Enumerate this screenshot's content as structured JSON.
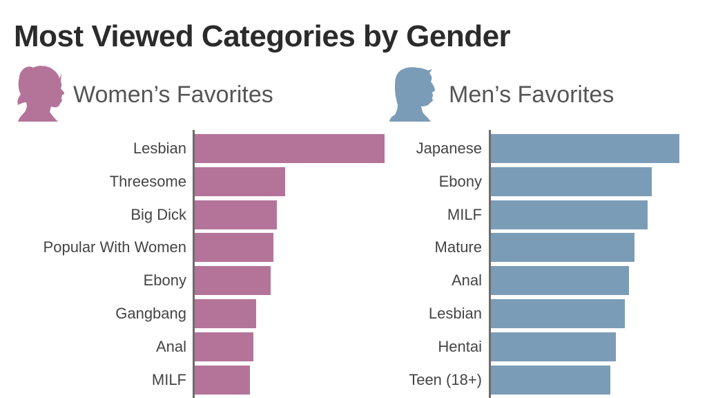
{
  "title": "Most Viewed Categories by Gender",
  "colors": {
    "women": "#b47499",
    "men": "#7b9cb7",
    "axis": "#6e6a6d",
    "title": "#2b2b2b"
  },
  "panels": {
    "women": {
      "heading": "Women’s Favorites",
      "icon": "female-silhouette-icon"
    },
    "men": {
      "heading": "Men’s Favorites",
      "icon": "male-silhouette-icon"
    }
  },
  "chart_data": [
    {
      "type": "bar",
      "orientation": "horizontal",
      "title": "Women’s Favorites",
      "categories": [
        "Lesbian",
        "Threesome",
        "Big Dick",
        "Popular With Women",
        "Ebony",
        "Gangbang",
        "Anal",
        "MILF"
      ],
      "values": [
        275,
        131,
        119,
        114,
        110,
        89,
        85,
        80
      ],
      "units": "relative bar length (px, unlabeled axis)",
      "xlabel": "",
      "ylabel": "",
      "grid": false,
      "color": "#b47499"
    },
    {
      "type": "bar",
      "orientation": "horizontal",
      "title": "Men’s Favorites",
      "categories": [
        "Japanese",
        "Ebony",
        "MILF",
        "Mature",
        "Anal",
        "Lesbian",
        "Hentai",
        "Teen (18+)"
      ],
      "values": [
        273,
        233,
        227,
        208,
        200,
        194,
        181,
        173
      ],
      "units": "relative bar length (px, unlabeled axis)",
      "xlabel": "",
      "ylabel": "",
      "grid": false,
      "color": "#7b9cb7"
    }
  ]
}
